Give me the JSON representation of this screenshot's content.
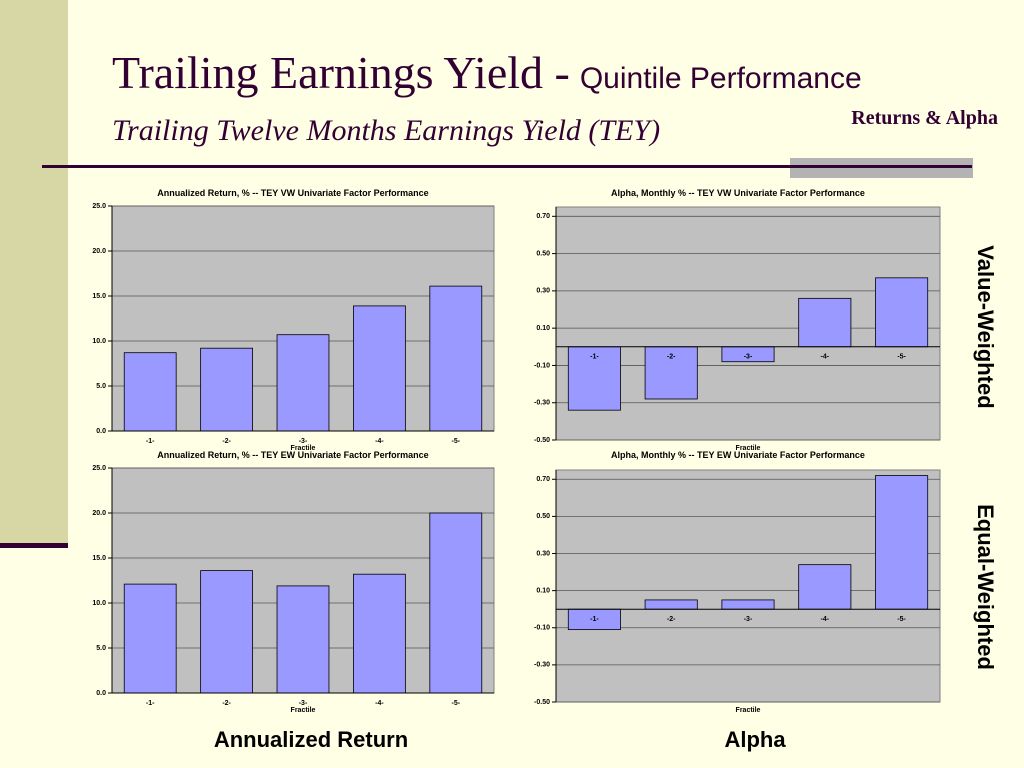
{
  "slide": {
    "title": "Trailing Earnings Yield -",
    "title_small": "Quintile Performance",
    "subtitle": "Trailing Twelve Months Earnings Yield (TEY)",
    "tag": "Returns & Alpha",
    "row_labels": [
      "Value-Weighted",
      "Equal-Weighted"
    ],
    "column_labels": [
      "Annualized Return",
      "Alpha"
    ]
  },
  "chart_data": [
    {
      "type": "bar",
      "title": "Annualized Return, %  -- TEY VW Univariate Factor Performance",
      "x_label": "Fractile",
      "categories": [
        "-1-",
        "-2-",
        "-3-",
        "-4-",
        "-5-"
      ],
      "values": [
        8.7,
        9.2,
        10.7,
        13.9,
        16.1
      ],
      "color": "#9999ff",
      "ylim": [
        0,
        25
      ],
      "yticks": [
        {
          "value": 0,
          "label": "0.0"
        },
        {
          "value": 5,
          "label": "5.0"
        },
        {
          "value": 10,
          "label": "10.0"
        },
        {
          "value": 15,
          "label": "15.0"
        },
        {
          "value": 20,
          "label": "20.0"
        },
        {
          "value": 25,
          "label": "25.0"
        }
      ],
      "grid": true
    },
    {
      "type": "bar",
      "title": "Alpha, Monthly %  -- TEY VW Univariate Factor Performance",
      "x_label": "Fractile",
      "categories": [
        "-1-",
        "-2-",
        "-3-",
        "-4-",
        "-5-"
      ],
      "values": [
        -0.34,
        -0.28,
        -0.08,
        0.26,
        0.37
      ],
      "color": "#9999ff",
      "ylim": [
        -0.5,
        0.75
      ],
      "yticks": [
        {
          "value": 0.7,
          "label": "0.70"
        },
        {
          "value": 0.5,
          "label": "0.50"
        },
        {
          "value": 0.3,
          "label": "0.30"
        },
        {
          "value": 0.1,
          "label": "0.10"
        },
        {
          "value": -0.1,
          "label": "-0.10"
        },
        {
          "value": -0.3,
          "label": "-0.30"
        },
        {
          "value": -0.5,
          "label": "-0.50"
        }
      ],
      "grid": true
    },
    {
      "type": "bar",
      "title": "Annualized Return, %  -- TEY EW Univariate Factor Performance",
      "x_label": "Fractile",
      "categories": [
        "-1-",
        "-2-",
        "-3-",
        "-4-",
        "-5-"
      ],
      "values": [
        12.1,
        13.6,
        11.9,
        13.2,
        20.0
      ],
      "color": "#9999ff",
      "ylim": [
        0,
        25
      ],
      "yticks": [
        {
          "value": 0,
          "label": "0.0"
        },
        {
          "value": 5,
          "label": "5.0"
        },
        {
          "value": 10,
          "label": "10.0"
        },
        {
          "value": 15,
          "label": "15.0"
        },
        {
          "value": 20,
          "label": "20.0"
        },
        {
          "value": 25,
          "label": "25.0"
        }
      ],
      "grid": true
    },
    {
      "type": "bar",
      "title": "Alpha, Monthly %  -- TEY EW Univariate Factor Performance",
      "x_label": "Fractile",
      "categories": [
        "-1-",
        "-2-",
        "-3-",
        "-4-",
        "-5-"
      ],
      "values": [
        -0.11,
        0.05,
        0.05,
        0.24,
        0.72
      ],
      "color": "#9999ff",
      "ylim": [
        -0.5,
        0.75
      ],
      "yticks": [
        {
          "value": 0.7,
          "label": "0.70"
        },
        {
          "value": 0.5,
          "label": "0.50"
        },
        {
          "value": 0.3,
          "label": "0.30"
        },
        {
          "value": 0.1,
          "label": "0.10"
        },
        {
          "value": -0.1,
          "label": "-0.10"
        },
        {
          "value": -0.3,
          "label": "-0.30"
        },
        {
          "value": -0.5,
          "label": "-0.50"
        }
      ],
      "grid": true
    }
  ]
}
